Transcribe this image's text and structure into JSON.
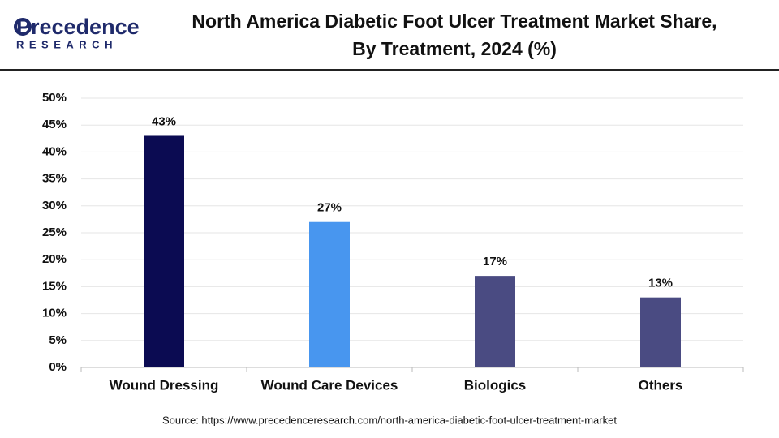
{
  "logo": {
    "name": "Precedence",
    "tagline": "RESEARCH"
  },
  "chart_data": {
    "type": "bar",
    "title": [
      "North America Diabetic Foot Ulcer Treatment Market Share,",
      "By Treatment, 2024 (%)"
    ],
    "categories": [
      "Wound Dressing",
      "Wound Care Devices",
      "Biologics",
      "Others"
    ],
    "values": [
      43,
      27,
      17,
      13
    ],
    "value_labels": [
      "43%",
      "27%",
      "17%",
      "13%"
    ],
    "colors": [
      "#0b0b52",
      "#4896ef",
      "#4a4b82",
      "#4a4b82"
    ],
    "ylim": [
      0,
      50
    ],
    "yticks": [
      {
        "value": 0,
        "label": "0%"
      },
      {
        "value": 5,
        "label": "5%"
      },
      {
        "value": 10,
        "label": "10%"
      },
      {
        "value": 15,
        "label": "15%"
      },
      {
        "value": 20,
        "label": "20%"
      },
      {
        "value": 25,
        "label": "25%"
      },
      {
        "value": 30,
        "label": "30%"
      },
      {
        "value": 35,
        "label": "35%"
      },
      {
        "value": 40,
        "label": "40%"
      },
      {
        "value": 45,
        "label": "45%"
      },
      {
        "value": 50,
        "label": "50%"
      }
    ],
    "grid": true,
    "source": "Source: https://www.precedenceresearch.com/north-america-diabetic-foot-ulcer-treatment-market"
  }
}
